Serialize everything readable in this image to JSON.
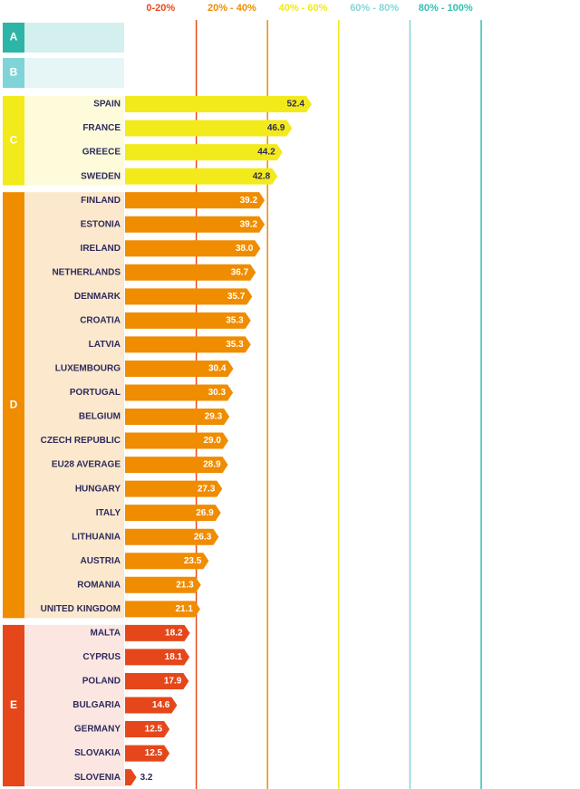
{
  "chart_data": {
    "type": "bar",
    "xlim": [
      0,
      100
    ],
    "xticks": [
      {
        "value": 20,
        "label": "0-20%"
      },
      {
        "value": 40,
        "label": "20% - 40%"
      },
      {
        "value": 60,
        "label": "40% - 60%"
      },
      {
        "value": 80,
        "label": "60% - 80%"
      },
      {
        "value": 100,
        "label": "80% - 100%"
      }
    ],
    "xtick_colors": [
      "#e64a1c",
      "#f08c00",
      "#f2e81a",
      "#86d6d6",
      "#33bfb0"
    ],
    "series": [
      {
        "name": "A",
        "color": "#2db5a8",
        "shade": "#d3f0ee",
        "categories": [],
        "values": [],
        "value_labels": []
      },
      {
        "name": "B",
        "color": "#80d4d8",
        "shade": "#e6f6f7",
        "categories": [],
        "values": [],
        "value_labels": []
      },
      {
        "name": "C",
        "color": "#f3ea1c",
        "shade": "#fdfbda",
        "categories": [
          "SPAIN",
          "FRANCE",
          "GREECE",
          "SWEDEN"
        ],
        "values": [
          52.4,
          46.9,
          44.2,
          42.8
        ],
        "value_labels": [
          "52.4",
          "46.9",
          "44.2",
          "42.8"
        ]
      },
      {
        "name": "D",
        "color": "#f08c00",
        "shade": "#fce8cc",
        "categories": [
          "FINLAND",
          "ESTONIA",
          "IRELAND",
          "NETHERLANDS",
          "DENMARK",
          "CROATIA",
          "LATVIA",
          "LUXEMBOURG",
          "PORTUGAL",
          "BELGIUM",
          "CZECH REPUBLIC",
          "EU28 AVERAGE",
          "HUNGARY",
          "ITALY",
          "LITHUANIA",
          "AUSTRIA",
          "ROMANIA",
          "UNITED KINGDOM"
        ],
        "values": [
          39.2,
          39.2,
          38.0,
          36.7,
          35.7,
          35.3,
          35.3,
          30.4,
          30.3,
          29.3,
          29.0,
          28.9,
          27.3,
          26.9,
          26.3,
          23.5,
          21.3,
          21.1
        ],
        "value_labels": [
          "39.2",
          "39.2",
          "38.0",
          "36.7",
          "35.7",
          "35.3",
          "35.3",
          "30.4",
          "30.3",
          "29.3",
          "29.0",
          "28.9",
          "27.3",
          "26.9",
          "26.3",
          "23.5",
          "21.3",
          "21.1"
        ]
      },
      {
        "name": "E",
        "color": "#e5471b",
        "shade": "#fbe6e1",
        "categories": [
          "MALTA",
          "CYPRUS",
          "POLAND",
          "BULGARIA",
          "GERMANY",
          "SLOVAKIA",
          "SLOVENIA"
        ],
        "values": [
          18.2,
          18.1,
          17.9,
          14.6,
          12.5,
          12.5,
          3.2
        ],
        "value_labels": [
          "18.2",
          "18.1",
          "17.9",
          "14.6",
          "12.5",
          "12.5",
          "3.2"
        ]
      }
    ]
  }
}
